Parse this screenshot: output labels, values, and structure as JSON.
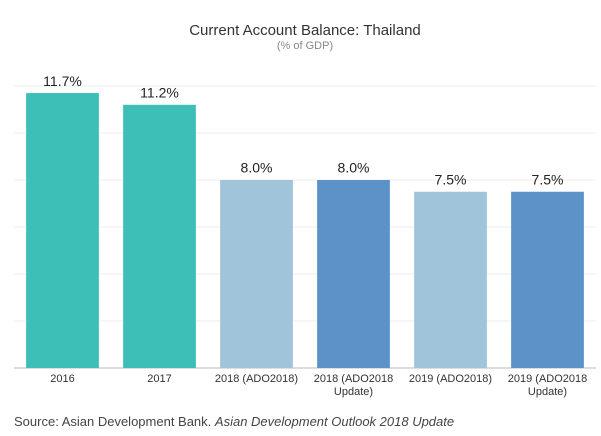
{
  "chart_data": {
    "type": "bar",
    "title": "Current Account Balance: Thailand",
    "subtitle": "(% of GDP)",
    "categories": [
      "2016",
      "2017",
      "2018 (ADO2018)",
      "2018 (ADO2018 Update)",
      "2019 (ADO2018)",
      "2019 (ADO2018 Update)"
    ],
    "values": [
      11.7,
      11.2,
      8.0,
      8.0,
      7.5,
      7.5
    ],
    "value_labels": [
      "11.7%",
      "11.2%",
      "8.0%",
      "8.0%",
      "7.5%",
      "7.5%"
    ],
    "colors": [
      "#3dbfb8",
      "#3dbfb8",
      "#a0c4da",
      "#5b93c9",
      "#a0c4da",
      "#5b93c9"
    ],
    "ylim": [
      0,
      12
    ],
    "yticks": [
      0,
      2,
      4,
      6,
      8,
      10,
      12
    ],
    "grid": true,
    "source": "Source: Asian Development Bank.",
    "source_title": "Asian Development Outlook 2018 Update"
  }
}
